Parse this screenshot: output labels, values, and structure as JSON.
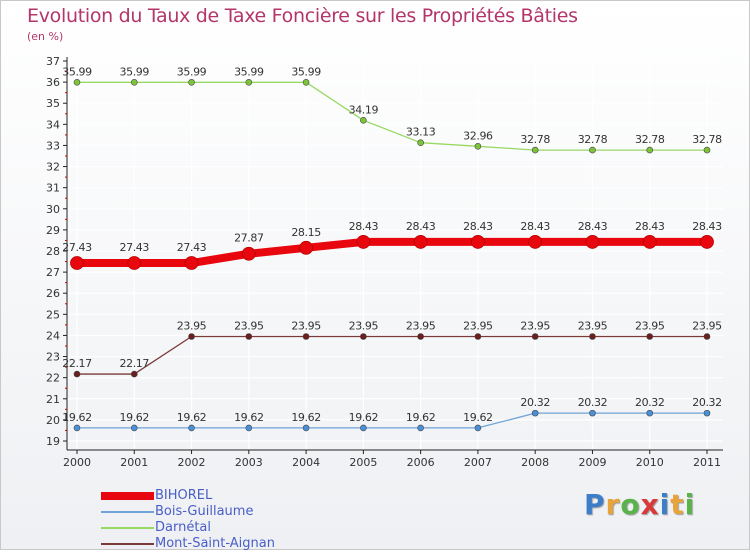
{
  "header": {
    "title": "Evolution du Taux de Taxe Foncière sur les Propriétés Bâties",
    "unit": "(en %)"
  },
  "logo": {
    "letters": [
      "P",
      "r",
      "o",
      "x",
      "i",
      "t",
      "i"
    ],
    "colors": [
      "#3c7fc8",
      "#e8a33a",
      "#5ab34a",
      "#d83a3a",
      "#3c7fc8",
      "#e8a33a",
      "#5ab34a"
    ]
  },
  "colors": {
    "title": "#b3356a",
    "legend_text": "#4a5ec8"
  },
  "chart_data": {
    "type": "line",
    "title": "Evolution du Taux de Taxe Foncière sur les Propriétés Bâties",
    "ylabel": "(en %)",
    "xlabel": "",
    "categories": [
      "2000",
      "2001",
      "2002",
      "2003",
      "2004",
      "2005",
      "2006",
      "2007",
      "2008",
      "2009",
      "2010",
      "2011"
    ],
    "ylim": [
      19,
      37
    ],
    "yticks": [
      19,
      20,
      21,
      22,
      23,
      24,
      25,
      26,
      27,
      28,
      29,
      30,
      31,
      32,
      33,
      34,
      35,
      36,
      37
    ],
    "series": [
      {
        "name": "BIHOREL",
        "color": "#e8070e",
        "dot": "#e8070e",
        "values": [
          27.43,
          27.43,
          27.43,
          27.87,
          28.15,
          28.43,
          28.43,
          28.43,
          28.43,
          28.43,
          28.43,
          28.43
        ],
        "labels": [
          "27.43",
          "27.43",
          "27.43",
          "27.87",
          "28.15",
          "28.43",
          "28.43",
          "28.43",
          "28.43",
          "28.43",
          "28.43",
          "28.43"
        ],
        "thick": true
      },
      {
        "name": "Bois-Guillaume",
        "color": "#6fa3d8",
        "dot": "#4a90d9",
        "values": [
          19.62,
          19.62,
          19.62,
          19.62,
          19.62,
          19.62,
          19.62,
          19.62,
          20.32,
          20.32,
          20.32,
          20.32
        ],
        "labels": [
          "19.62",
          "19.62",
          "19.62",
          "19.62",
          "19.62",
          "19.62",
          "19.62",
          "19.62",
          "20.32",
          "20.32",
          "20.32",
          "20.32"
        ],
        "thick": false
      },
      {
        "name": "Darnétal",
        "color": "#9ad864",
        "dot": "#7cc43a",
        "values": [
          35.99,
          35.99,
          35.99,
          35.99,
          35.99,
          34.19,
          33.13,
          32.96,
          32.78,
          32.78,
          32.78,
          32.78
        ],
        "labels": [
          "35.99",
          "35.99",
          "35.99",
          "35.99",
          "35.99",
          "34.19",
          "33.13",
          "32.96",
          "32.78",
          "32.78",
          "32.78",
          "32.78"
        ],
        "thick": false
      },
      {
        "name": "Mont-Saint-Aignan",
        "color": "#7a3a3a",
        "dot": "#6b1e1e",
        "values": [
          22.17,
          22.17,
          23.95,
          23.95,
          23.95,
          23.95,
          23.95,
          23.95,
          23.95,
          23.95,
          23.95,
          23.95
        ],
        "labels": [
          "22.17",
          "22.17",
          "23.95",
          "23.95",
          "23.95",
          "23.95",
          "23.95",
          "23.95",
          "23.95",
          "23.95",
          "23.95",
          "23.95"
        ],
        "thick": false
      }
    ],
    "legend_position": "bottom-left"
  }
}
